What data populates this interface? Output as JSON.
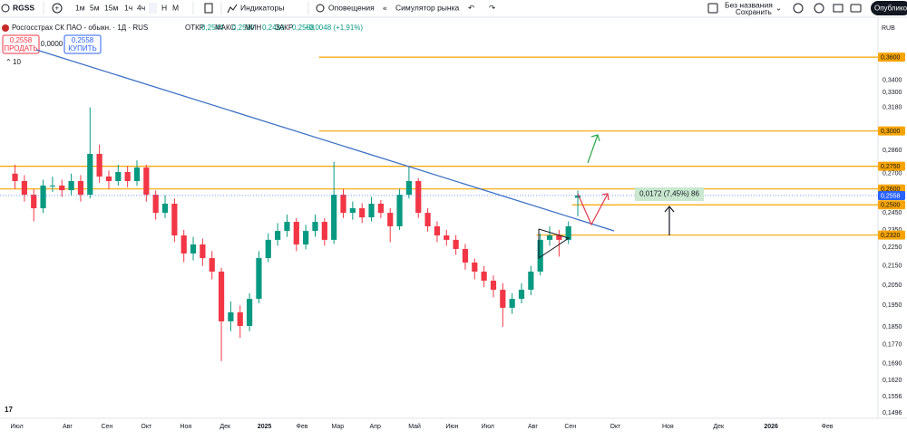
{
  "toolbar": {
    "symbol": "RGSS",
    "intervals": [
      "1м",
      "5м",
      "15м",
      "1ч",
      "4ч",
      "Д",
      "Н",
      "М"
    ],
    "indicators": "Индикаторы",
    "alerts": "Оповещения",
    "replay": "Симулятор рынка",
    "layout_name": "Без названия",
    "layout_status": "Сохранить",
    "publish": "Опублико"
  },
  "legend": {
    "title": "Росгосстрах СК ПАО - обыкн. · 1Д · RUS",
    "ohlc": [
      {
        "label": "ОТКР",
        "value": "0,2544"
      },
      {
        "label": "МАКС",
        "value": "0,2590"
      },
      {
        "label": "МИН",
        "value": "0,2430"
      },
      {
        "label": "ЗАКР",
        "value": "0,2558"
      }
    ],
    "change": "+0,0048 (+1,91%)",
    "sell_price": "0,2558",
    "sell": "ПРОДАТЬ",
    "spread": "0,0000",
    "buy_price": "0,2558",
    "buy": "КУПИТЬ",
    "volume_toggle": "10"
  },
  "chart_data": {
    "type": "candlestick",
    "currency": "RUB",
    "log_scale": true,
    "grid": false,
    "up_color": "#089981",
    "down_color": "#f23645",
    "x": [
      -1,
      4,
      9,
      14,
      19,
      24,
      29,
      34,
      39,
      44,
      49,
      54,
      59,
      64,
      69,
      74,
      79,
      84,
      89,
      94,
      99,
      104,
      109,
      114,
      119,
      124,
      129,
      134,
      139,
      144,
      149,
      154,
      159,
      164,
      169,
      174,
      179,
      184,
      189,
      194,
      199,
      204,
      209,
      214,
      219,
      224,
      229,
      234,
      239,
      244,
      249,
      254,
      259,
      264,
      269,
      274,
      279,
      284,
      289,
      294,
      299
    ],
    "open": [
      0.27,
      0.2651,
      0.2563,
      0.2479,
      0.2622,
      0.2622,
      0.2592,
      0.2651,
      0.2563,
      0.2835,
      0.2681,
      0.2651,
      0.2711,
      0.2651,
      0.2741,
      0.2563,
      0.2451,
      0.2507,
      0.2318,
      0.2217,
      0.2267,
      0.2192,
      0.212,
      0.1875,
      0.1917,
      0.1854,
      0.1982,
      0.2192,
      0.2293,
      0.2344,
      0.2397,
      0.2267,
      0.2344,
      0.2397,
      0.2293,
      0.2563,
      0.2451,
      0.2479,
      0.2424,
      0.2507,
      0.2451,
      0.2371,
      0.2563,
      0.2651,
      0.2451,
      0.2371,
      0.2318,
      0.2293,
      0.2242,
      0.2168,
      0.212,
      0.2073,
      0.2027,
      0.1939,
      0.1982,
      0.2027,
      0.212,
      0.2293,
      0.2318,
      0.2293,
      0.2544
    ],
    "high": [
      0.276,
      0.269,
      0.26,
      0.266,
      0.268,
      0.266,
      0.27,
      0.269,
      0.318,
      0.29,
      0.272,
      0.276,
      0.275,
      0.279,
      0.276,
      0.259,
      0.256,
      0.254,
      0.235,
      0.231,
      0.23,
      0.223,
      0.214,
      0.197,
      0.195,
      0.201,
      0.223,
      0.233,
      0.239,
      0.244,
      0.242,
      0.238,
      0.244,
      0.242,
      0.278,
      0.26,
      0.252,
      0.251,
      0.255,
      0.253,
      0.248,
      0.26,
      0.275,
      0.267,
      0.248,
      0.24,
      0.235,
      0.232,
      0.227,
      0.219,
      0.215,
      0.21,
      0.206,
      0.201,
      0.206,
      0.215,
      0.233,
      0.237,
      0.235,
      0.24,
      0.259
    ],
    "low": [
      0.26,
      0.252,
      0.24,
      0.245,
      0.258,
      0.255,
      0.256,
      0.252,
      0.254,
      0.264,
      0.26,
      0.262,
      0.261,
      0.262,
      0.252,
      0.241,
      0.242,
      0.228,
      0.217,
      0.218,
      0.215,
      0.208,
      0.17,
      0.183,
      0.18,
      0.183,
      0.196,
      0.217,
      0.226,
      0.231,
      0.223,
      0.224,
      0.231,
      0.226,
      0.227,
      0.242,
      0.241,
      0.239,
      0.24,
      0.242,
      0.228,
      0.235,
      0.254,
      0.242,
      0.234,
      0.228,
      0.226,
      0.221,
      0.213,
      0.208,
      0.204,
      0.199,
      0.185,
      0.191,
      0.196,
      0.2,
      0.21,
      0.226,
      0.22,
      0.227,
      0.243
    ],
    "close": [
      0.2651,
      0.2563,
      0.2479,
      0.2622,
      0.2622,
      0.2592,
      0.2651,
      0.2563,
      0.2835,
      0.2681,
      0.2651,
      0.2711,
      0.2651,
      0.2741,
      0.2563,
      0.2451,
      0.2507,
      0.2318,
      0.2217,
      0.2267,
      0.2192,
      0.212,
      0.1875,
      0.1917,
      0.1854,
      0.1982,
      0.2192,
      0.2293,
      0.2344,
      0.2397,
      0.2267,
      0.2344,
      0.2397,
      0.2293,
      0.2563,
      0.2451,
      0.2479,
      0.2424,
      0.2507,
      0.2451,
      0.2371,
      0.2563,
      0.2651,
      0.2451,
      0.2371,
      0.2318,
      0.2293,
      0.2242,
      0.2168,
      0.212,
      0.2073,
      0.2027,
      0.1939,
      0.1982,
      0.2027,
      0.212,
      0.2293,
      0.2318,
      0.2293,
      0.2371,
      0.2558
    ],
    "xlim": [
      -9,
      459
    ],
    "xticks": [
      {
        "value": 0,
        "label": "Июл"
      },
      {
        "value": 27,
        "label": "Авг"
      },
      {
        "value": 48,
        "label": "Сен"
      },
      {
        "value": 69,
        "label": "Окт"
      },
      {
        "value": 90,
        "label": "Ноя"
      },
      {
        "value": 111,
        "label": "Дек"
      },
      {
        "value": 132,
        "label": "2025"
      },
      {
        "value": 152,
        "label": "Фев"
      },
      {
        "value": 171,
        "label": "Мар"
      },
      {
        "value": 191,
        "label": "Апр"
      },
      {
        "value": 212,
        "label": "Май"
      },
      {
        "value": 232,
        "label": "Июн"
      },
      {
        "value": 251,
        "label": "Июл"
      },
      {
        "value": 275,
        "label": "Авг"
      },
      {
        "value": 295,
        "label": "Сен"
      },
      {
        "value": 319,
        "label": "Окт"
      },
      {
        "value": 347,
        "label": "Ноя"
      },
      {
        "value": 374,
        "label": "Дек"
      },
      {
        "value": 402,
        "label": "2026"
      },
      {
        "value": 432,
        "label": "Фев"
      }
    ],
    "ylim": [
      0.1476,
      0.392
    ],
    "yticks": [
      {
        "value": 0.34,
        "label": "0,3400"
      },
      {
        "value": 0.33,
        "label": "0,3300"
      },
      {
        "value": 0.318,
        "label": "0,3180"
      },
      {
        "value": 0.286,
        "label": "0,2860"
      },
      {
        "value": 0.27,
        "label": "0,2700"
      },
      {
        "value": 0.245,
        "label": "0,2450"
      },
      {
        "value": 0.235,
        "label": "0,2350"
      },
      {
        "value": 0.225,
        "label": "0,2250"
      },
      {
        "value": 0.215,
        "label": "0,2150"
      },
      {
        "value": 0.205,
        "label": "0,2050"
      },
      {
        "value": 0.195,
        "label": "0,1950"
      },
      {
        "value": 0.185,
        "label": "0,1850"
      },
      {
        "value": 0.177,
        "label": "0,1770"
      },
      {
        "value": 0.169,
        "label": "0,1690"
      },
      {
        "value": 0.162,
        "label": "0,1620"
      },
      {
        "value": 0.1556,
        "label": "0,1556"
      },
      {
        "value": 0.1496,
        "label": "0,1496"
      }
    ],
    "levels": [
      {
        "value": 0.36,
        "label": "0,3600",
        "start": 161
      },
      {
        "value": 0.3,
        "label": "0,3000",
        "start": 161
      },
      {
        "value": 0.275,
        "label": "0,2750",
        "start": -9
      },
      {
        "value": 0.26,
        "label": "0,2600",
        "start": -9
      },
      {
        "value": 0.25,
        "label": "0,2500",
        "start": 296
      },
      {
        "value": 0.232,
        "label": "0,2320",
        "start": 277
      }
    ],
    "level_color": "#f7a400",
    "last_price": {
      "value": 0.2558,
      "label": "0,2558",
      "color": "#2962ff"
    },
    "measure_label": "0,0172 (7,45%) 86"
  }
}
